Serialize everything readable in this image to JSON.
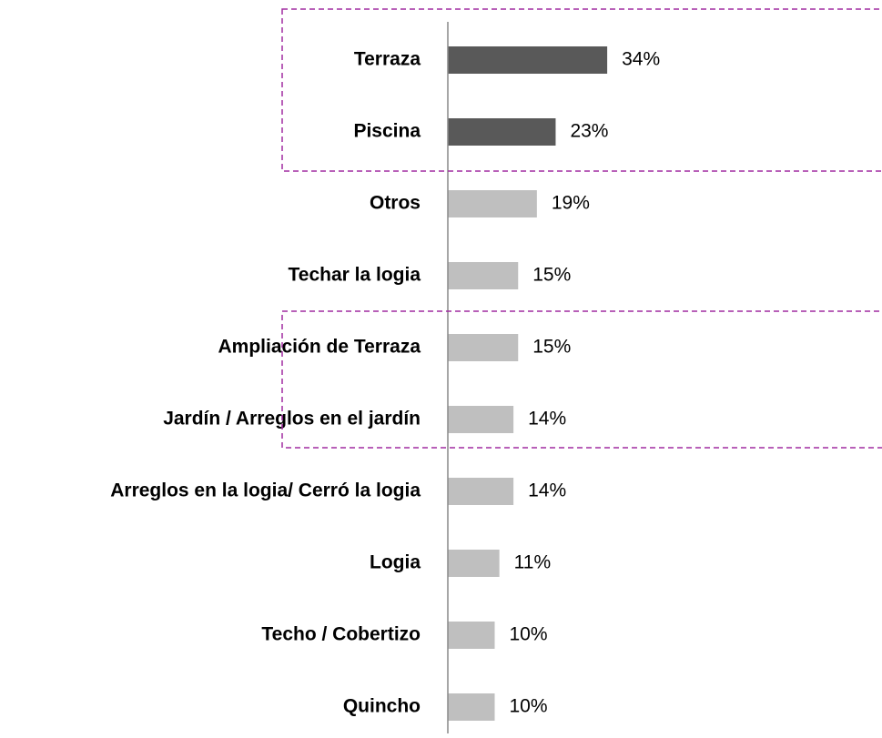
{
  "chart_data": {
    "type": "hbar",
    "categories": [
      "Terraza",
      "Piscina",
      "Otros",
      "Techar la logia",
      "Ampliación de Terraza",
      "Jardín / Arreglos en el jardín",
      "Arreglos en la logia/ Cerró la logia",
      "Logia",
      "Techo / Cobertizo",
      "Quincho"
    ],
    "values": [
      34,
      23,
      19,
      15,
      15,
      14,
      14,
      11,
      10,
      10
    ],
    "value_labels": [
      "34%",
      "23%",
      "19%",
      "15%",
      "15%",
      "14%",
      "14%",
      "11%",
      "10%",
      "10%"
    ],
    "colors": [
      "#595959",
      "#595959",
      "#bfbfbf",
      "#bfbfbf",
      "#bfbfbf",
      "#bfbfbf",
      "#bfbfbf",
      "#bfbfbf",
      "#bfbfbf",
      "#bfbfbf"
    ],
    "highlight_color": "#a02ca0"
  }
}
